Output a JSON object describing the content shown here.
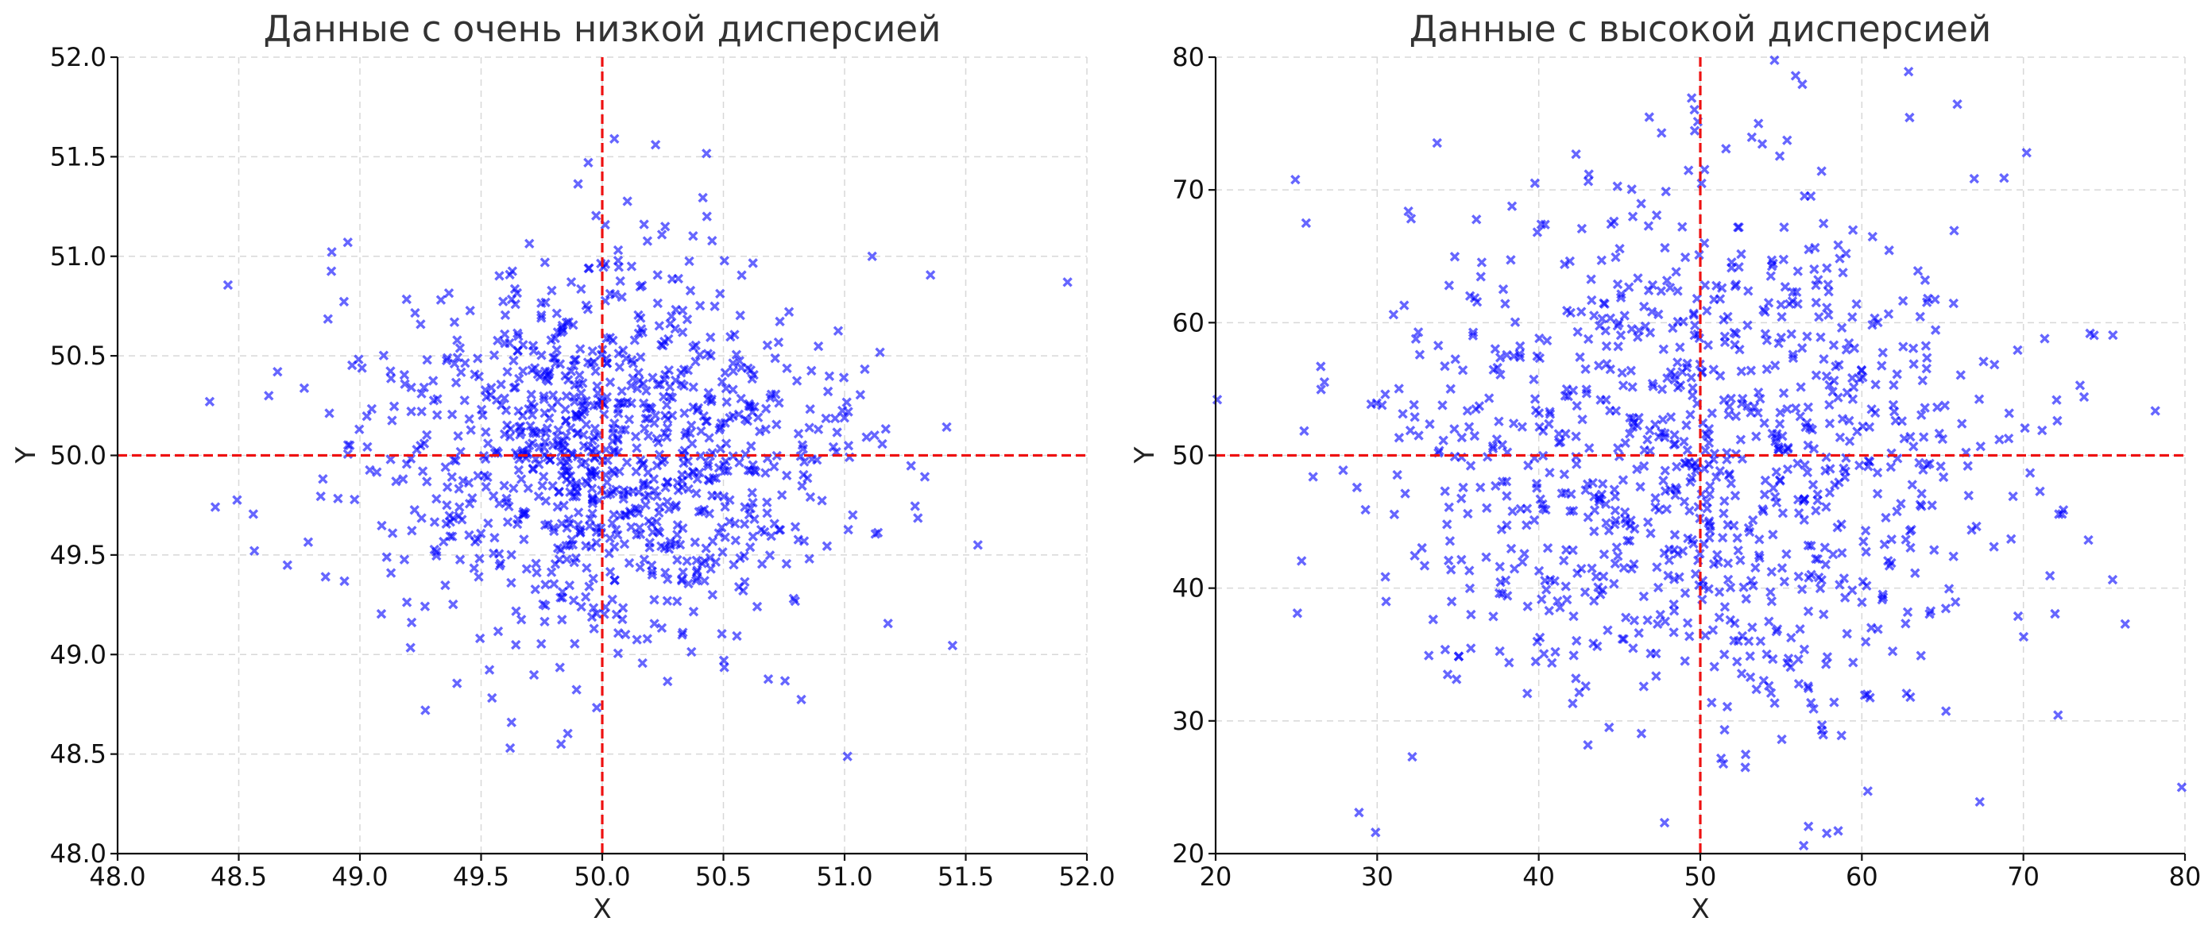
{
  "chart_data": [
    {
      "type": "scatter",
      "title": "Данные с очень низкой дисперсией",
      "xlabel": "X",
      "ylabel": "Y",
      "xlim": [
        48.0,
        52.0
      ],
      "ylim": [
        48.0,
        52.0
      ],
      "xticks": [
        "48.0",
        "48.5",
        "49.0",
        "49.5",
        "50.0",
        "50.5",
        "51.0",
        "51.5",
        "52.0"
      ],
      "yticks": [
        "48.0",
        "48.5",
        "49.0",
        "49.5",
        "50.0",
        "50.5",
        "51.0",
        "51.5",
        "52.0"
      ],
      "grid": true,
      "marker": "x",
      "color": "#0000ff",
      "reference_lines": {
        "vertical_x": 50,
        "horizontal_y": 50,
        "color": "#ff0000",
        "style": "dashed"
      },
      "distribution": {
        "n": 1000,
        "mean_x": 50,
        "mean_y": 50,
        "std_x": 0.5,
        "std_y": 0.5
      },
      "outliers": [
        [
          48.38,
          50.27
        ],
        [
          51.92,
          50.87
        ],
        [
          51.55,
          49.55
        ],
        [
          48.95,
          51.07
        ],
        [
          50.05,
          51.59
        ],
        [
          50.22,
          51.56
        ],
        [
          49.62,
          48.53
        ],
        [
          49.83,
          48.55
        ],
        [
          49.27,
          48.72
        ],
        [
          48.66,
          50.42
        ]
      ]
    },
    {
      "type": "scatter",
      "title": "Данные с высокой дисперсией",
      "xlabel": "X",
      "ylabel": "Y",
      "xlim": [
        20,
        80
      ],
      "ylim": [
        20,
        80
      ],
      "xticks": [
        "20",
        "30",
        "40",
        "50",
        "60",
        "70",
        "80"
      ],
      "yticks": [
        "20",
        "30",
        "40",
        "50",
        "60",
        "70",
        "80"
      ],
      "grid": true,
      "marker": "x",
      "color": "#0000ff",
      "reference_lines": {
        "vertical_x": 50,
        "horizontal_y": 50,
        "color": "#ff0000",
        "style": "dashed"
      },
      "distribution": {
        "n": 1000,
        "mean_x": 50,
        "mean_y": 50,
        "std_x": 10,
        "std_y": 10
      },
      "outliers": [
        [
          55.9,
          78.6
        ],
        [
          29.9,
          21.6
        ],
        [
          79.8,
          25.0
        ],
        [
          20.1,
          54.2
        ],
        [
          56.4,
          20.6
        ],
        [
          25.6,
          67.5
        ],
        [
          70.2,
          72.8
        ],
        [
          76.3,
          37.3
        ],
        [
          53.6,
          75.0
        ],
        [
          67.3,
          23.9
        ]
      ]
    }
  ]
}
